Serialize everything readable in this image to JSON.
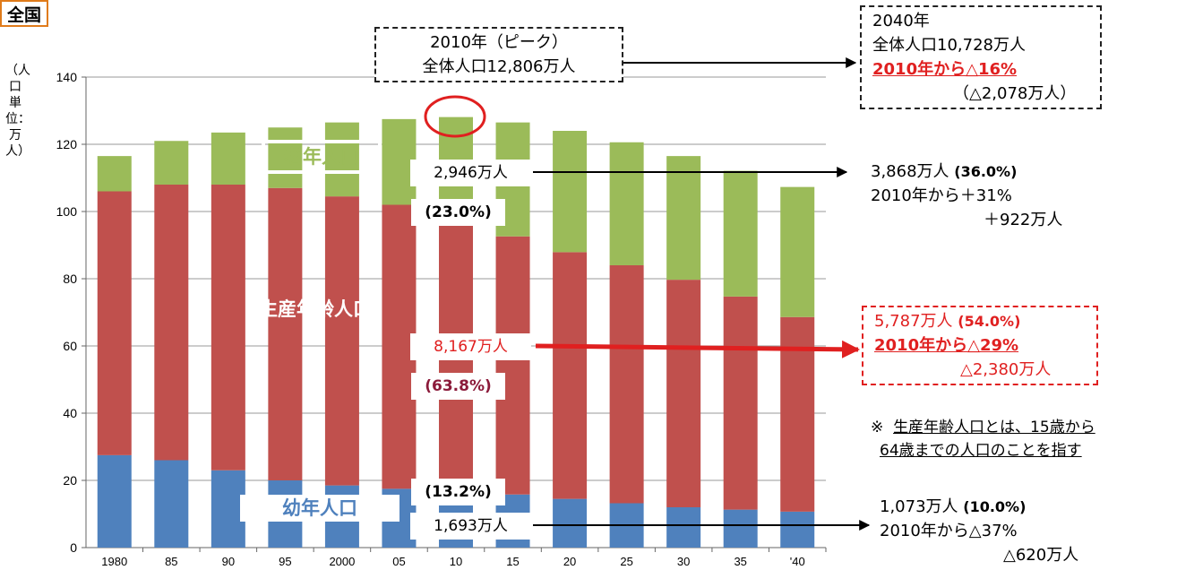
{
  "region": "全国",
  "y_unit_label": "（人口　単位：万人）",
  "chart_data": {
    "type": "bar",
    "stacked": true,
    "categories": [
      "1980",
      "85",
      "90",
      "95",
      "2000",
      "05",
      "10",
      "15",
      "20",
      "25",
      "30",
      "35",
      "'40"
    ],
    "ylim": [
      0,
      140
    ],
    "yticks": [
      0,
      20,
      40,
      60,
      80,
      100,
      120,
      140
    ],
    "series": [
      {
        "name": "幼年人口",
        "color": "#4f81bd",
        "values": [
          27.5,
          26.0,
          23.0,
          20.0,
          18.5,
          17.5,
          16.9,
          15.8,
          14.5,
          13.2,
          12.0,
          11.3,
          10.7
        ]
      },
      {
        "name": "生産年齢人口",
        "color": "#c0504d",
        "values": [
          78.5,
          82.0,
          85.0,
          87.0,
          86.0,
          84.5,
          81.7,
          76.8,
          73.4,
          70.8,
          67.7,
          63.4,
          57.9
        ]
      },
      {
        "name": "老年人口",
        "color": "#9bbb59",
        "values": [
          10.5,
          13.0,
          15.5,
          18.0,
          22.0,
          25.5,
          29.5,
          33.9,
          36.1,
          36.6,
          36.8,
          37.4,
          38.7
        ]
      }
    ]
  },
  "annotations": {
    "peak_2010": {
      "line1": "2010年（ピーク）",
      "line2": "全体人口12,806万人"
    },
    "total_2040": {
      "line1": "2040年",
      "line2": "全体人口10,728万人",
      "line3": "2010年から△16%",
      "line4": "（△2,078万人）"
    },
    "elderly_2010": {
      "value": "2,946万人",
      "share": "(23.0%)"
    },
    "elderly_2040": {
      "line1a": "3,868万人",
      "line1b": "(36.0%)",
      "line2": "2010年から＋31%",
      "line3": "＋922万人"
    },
    "working_2010": {
      "value": "8,167万人",
      "share": "(63.8%)"
    },
    "working_2040": {
      "line1a": "5,787万人",
      "line1b": "(54.0%)",
      "line2": "2010年から△29%",
      "line3": "△2,380万人"
    },
    "child_2010": {
      "share": "(13.2%)",
      "value": "1,693万人"
    },
    "child_2040": {
      "line1a": "1,073万人",
      "line1b": "(10.0%)",
      "line2": "2010年から△37%",
      "line3": "△620万人"
    }
  },
  "note": {
    "mark": "※",
    "line1": "生産年齢人口とは、15歳から",
    "line2": "64歳までの人口のことを指す"
  }
}
